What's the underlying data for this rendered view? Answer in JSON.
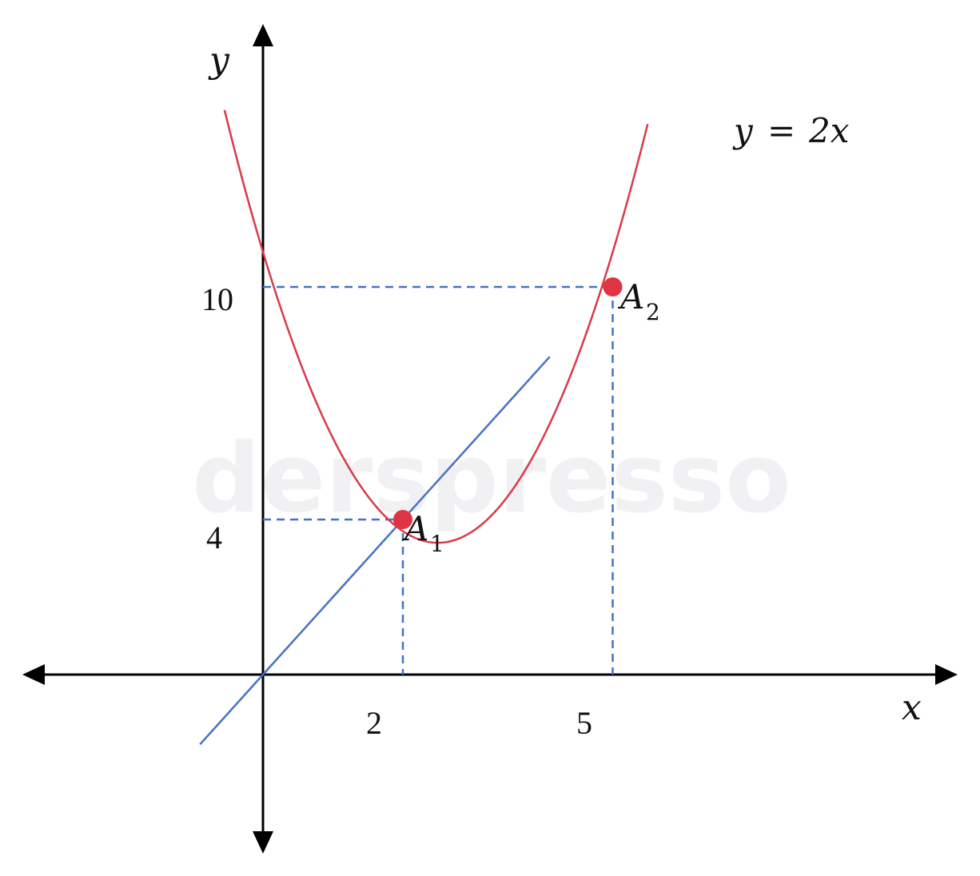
{
  "chart_data": {
    "type": "line",
    "title": "",
    "xlabel": "x",
    "ylabel": "y",
    "xlim": [
      -2.32,
      6.35
    ],
    "ylim": [
      -4.5,
      15.9
    ],
    "grid": false,
    "x_ticks": [
      "2",
      "5"
    ],
    "y_ticks": [
      "10",
      "4"
    ],
    "watermark": "derspresso",
    "colors": {
      "curve": "#d93a4a",
      "line": "#4472c4",
      "axis": "#000000",
      "point": "#e03344",
      "guide": "#4472c4"
    },
    "series": [
      {
        "name": "",
        "kind": "parabola",
        "color": "#d93a4a",
        "x": [
          -0.55,
          0,
          1,
          2,
          2.5,
          3,
          4,
          5,
          5.5
        ],
        "y": [
          15.4,
          10,
          6,
          4,
          3.4,
          4,
          6,
          10,
          15.4
        ]
      },
      {
        "name": "y = 2x",
        "kind": "line",
        "color": "#4472c4",
        "x": [
          -0.9,
          4.1
        ],
        "y": [
          -1.8,
          8.2
        ]
      }
    ],
    "annotations": [
      {
        "name": "A",
        "sub": "1",
        "x": 2,
        "y": 4
      },
      {
        "name": "A",
        "sub": "2",
        "x": 5,
        "y": 10
      }
    ],
    "line_label": {
      "lhs": "y",
      "eq": "=",
      "rhs": "2x"
    }
  }
}
